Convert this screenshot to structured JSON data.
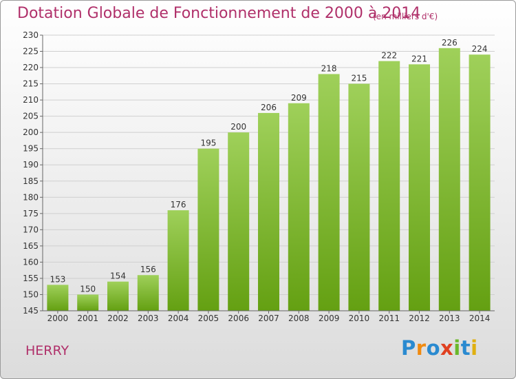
{
  "chart_data": {
    "type": "bar",
    "title": "Dotation Globale de Fonctionnement de 2000 à 2014",
    "subtitle": "(en milliers d'€)",
    "categories": [
      "2000",
      "2001",
      "2002",
      "2003",
      "2004",
      "2005",
      "2006",
      "2007",
      "2008",
      "2009",
      "2010",
      "2011",
      "2012",
      "2013",
      "2014"
    ],
    "values": [
      153,
      150,
      154,
      156,
      176,
      195,
      200,
      206,
      209,
      218,
      215,
      222,
      221,
      226,
      224
    ],
    "ylim": [
      145,
      230
    ],
    "yticks": [
      145,
      150,
      155,
      160,
      165,
      170,
      175,
      180,
      185,
      190,
      195,
      200,
      205,
      210,
      215,
      220,
      225,
      230
    ],
    "grid": true,
    "bar_color_top": "#9fd05a",
    "bar_color_bottom": "#64a012"
  },
  "commune": "HERRY",
  "logo": {
    "letters": [
      "P",
      "r",
      "o",
      "x",
      "i",
      "t",
      "i"
    ],
    "colors": [
      "#2a8ad0",
      "#f08a10",
      "#2a8ad0",
      "#e04020",
      "#6ab82a",
      "#2a8ad0",
      "#e0b010"
    ]
  }
}
